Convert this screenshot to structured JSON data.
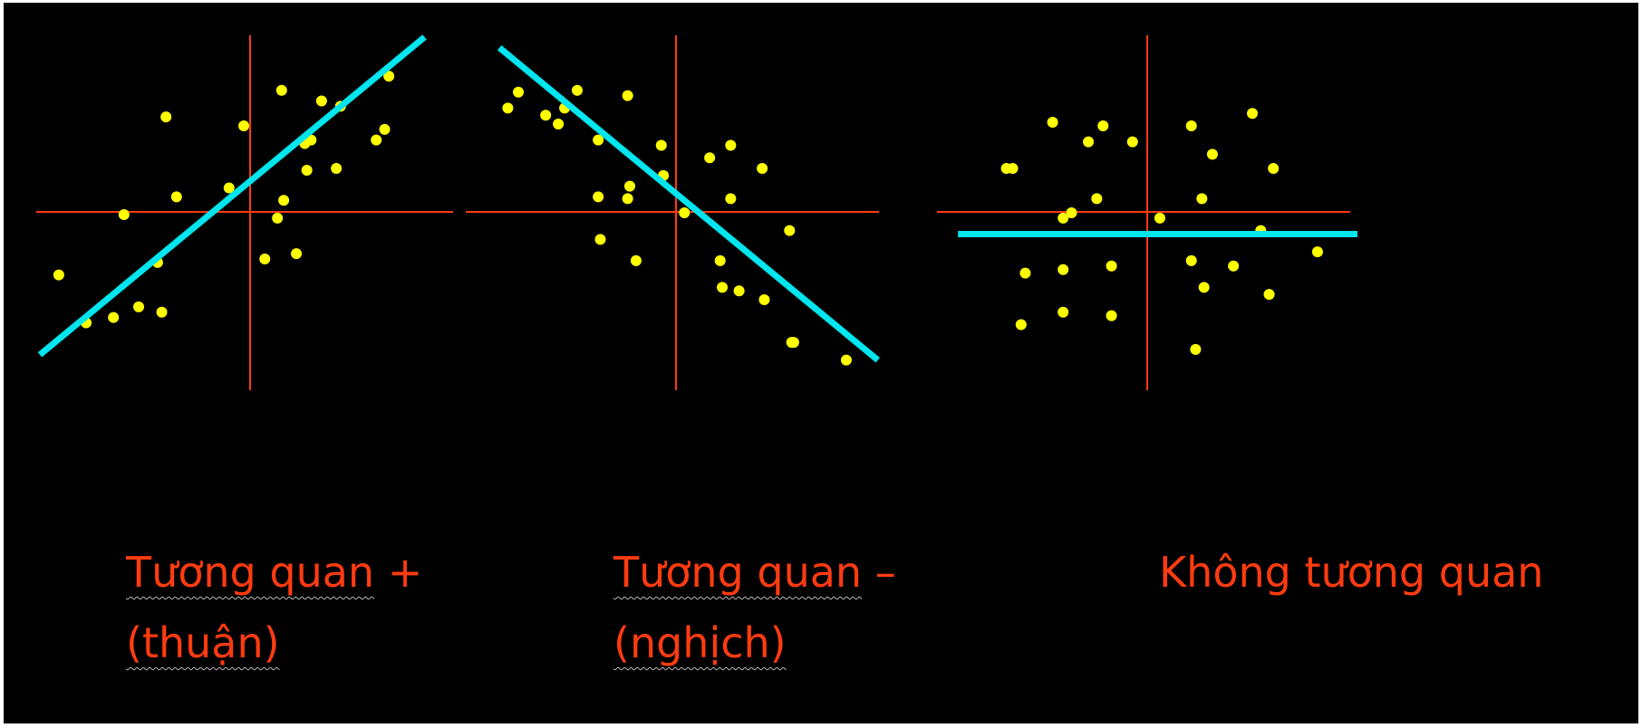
{
  "colors": {
    "background": "#000000",
    "axis": "#ff3b10",
    "point": "#ffff00",
    "trend": "#00e5ee",
    "caption": "#ff3b10"
  },
  "captions": [
    {
      "pre": "Tương quan",
      "post": " +",
      "line2_pre": "(thuận)"
    },
    {
      "pre": "Tương quan",
      "post": " –",
      "line2_pre": "(nghịch)"
    },
    {
      "pre": "Không tương quan",
      "post": "",
      "line2_pre": ""
    }
  ],
  "chart_data": [
    {
      "type": "scatter",
      "title": "",
      "xlabel": "",
      "ylabel": "",
      "xlim": [
        -10,
        10
      ],
      "ylim": [
        -10,
        10
      ],
      "grid": false,
      "reference_lines": {
        "x": 0,
        "y": 0
      },
      "trend_line": {
        "x": [
          -10.0,
          8.3
        ],
        "y": [
          -8.0,
          9.9
        ]
      },
      "points": {
        "x": [
          6.6,
          1.5,
          -4.0,
          -0.3,
          6.4,
          4.3,
          3.4,
          2.9,
          2.6,
          4.1,
          6.0,
          2.7,
          1.6,
          -1.0,
          -3.5,
          1.3,
          0.7,
          -6.0,
          -4.4,
          2.2,
          -9.1,
          -4.2,
          -5.3,
          -6.5,
          -7.8
        ],
        "y": [
          7.7,
          6.9,
          5.4,
          4.9,
          4.7,
          6.0,
          6.3,
          4.1,
          3.9,
          2.5,
          4.1,
          2.4,
          0.7,
          1.4,
          0.9,
          -0.3,
          -2.6,
          -0.1,
          -2.8,
          -2.3,
          -3.5,
          -5.6,
          -5.3,
          -5.9,
          -6.2
        ]
      }
    },
    {
      "type": "scatter",
      "title": "",
      "xlabel": "",
      "ylabel": "",
      "xlim": [
        -10,
        10
      ],
      "ylim": [
        -10,
        10
      ],
      "grid": false,
      "reference_lines": {
        "x": 0,
        "y": 0
      },
      "trend_line": {
        "x": [
          -8.4,
          9.6
        ],
        "y": [
          9.3,
          -8.3
        ]
      },
      "points": {
        "x": [
          -7.5,
          -4.7,
          -2.3,
          -8.0,
          -5.3,
          -6.2,
          -5.6,
          -3.7,
          -0.7,
          1.6,
          2.6,
          4.1,
          -2.2,
          -0.6,
          -3.7,
          -2.3,
          0.4,
          2.6,
          -3.6,
          -1.9,
          2.1,
          5.4,
          2.2,
          3.0,
          4.2,
          5.6,
          5.5,
          8.1
        ],
        "y": [
          6.8,
          6.9,
          6.6,
          5.9,
          5.9,
          5.5,
          5.0,
          4.1,
          3.8,
          3.1,
          3.8,
          2.5,
          1.5,
          2.1,
          0.9,
          0.8,
          0.0,
          0.8,
          -1.5,
          -2.7,
          -2.7,
          -1.0,
          -4.2,
          -4.4,
          -4.9,
          -7.3,
          -7.3,
          -8.3
        ]
      }
    },
    {
      "type": "scatter",
      "title": "",
      "xlabel": "",
      "ylabel": "",
      "xlim": [
        -10,
        10
      ],
      "ylim": [
        -10,
        10
      ],
      "grid": false,
      "reference_lines": {
        "x": 0,
        "y": 0
      },
      "trend_line": {
        "x": [
          -9.0,
          10.0
        ],
        "y": [
          -1.2,
          -1.2
        ]
      },
      "points": {
        "x": [
          5.0,
          -4.5,
          -2.1,
          2.1,
          -2.8,
          -0.7,
          -6.4,
          3.1,
          6.0,
          -6.7,
          -2.4,
          2.6,
          -3.6,
          -4.0,
          0.6,
          5.4,
          8.1,
          2.1,
          -5.8,
          -4.0,
          -1.7,
          4.1,
          2.7,
          -6.0,
          -4.0,
          5.8,
          2.3,
          -1.7
        ],
        "y": [
          5.6,
          5.1,
          4.9,
          4.9,
          4.0,
          4.0,
          2.5,
          3.3,
          2.5,
          2.5,
          0.8,
          0.8,
          0.0,
          -0.3,
          -0.3,
          -1.0,
          -2.2,
          -2.7,
          -3.4,
          -3.2,
          -3.0,
          -3.0,
          -4.2,
          -6.3,
          -5.6,
          -4.6,
          -7.7,
          -5.8
        ]
      }
    }
  ]
}
